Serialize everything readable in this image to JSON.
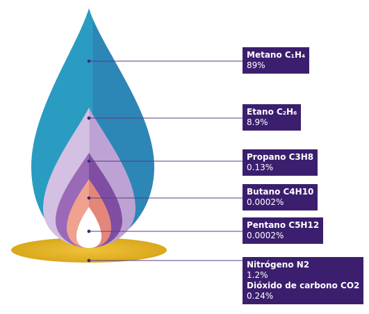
{
  "labels": [
    {
      "name": "Metano C₁H₄",
      "value": "89%"
    },
    {
      "name": "Etano C₂H₆",
      "value": "8.9%"
    },
    {
      "name": "Propano C3H8",
      "value": "0.13%"
    },
    {
      "name": "Butano C4H10",
      "value": "0.0002%"
    },
    {
      "name": "Pentano C5H12",
      "value": "0.0002%"
    }
  ],
  "bottom_box": [
    {
      "name": "Nitrógeno N2",
      "value": "1.2%"
    },
    {
      "name": "Dióxido de carbono CO2",
      "value": "0.24%"
    }
  ]
}
